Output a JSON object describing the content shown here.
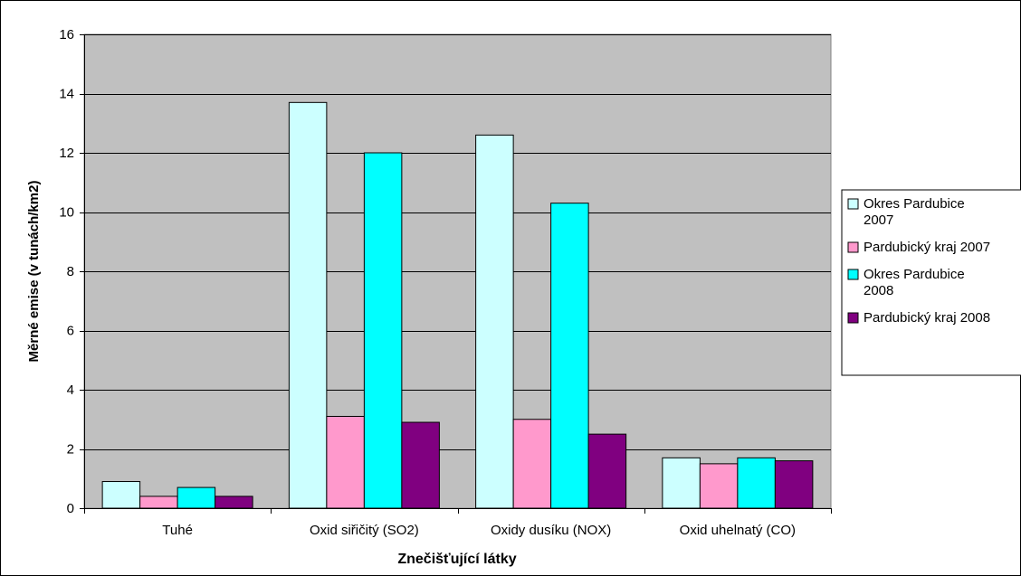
{
  "chart_data": {
    "type": "bar",
    "title": "",
    "xlabel": "Znečišťující látky",
    "ylabel": "Měrné emise (v tunách/km2)",
    "categories": [
      "Tuhé",
      "Oxid siřičitý (SO2)",
      "Oxidy dusíku (NOX)",
      "Oxid uhelnatý (CO)"
    ],
    "series": [
      {
        "name": "Okres Pardubice 2007",
        "legend_lines": [
          "Okres Pardubice",
          "2007"
        ],
        "color": "#ccffff",
        "values": [
          0.9,
          13.7,
          12.6,
          1.7
        ]
      },
      {
        "name": "Pardubický kraj 2007",
        "legend_lines": [
          "Pardubický kraj 2007"
        ],
        "color": "#ff99cc",
        "values": [
          0.4,
          3.1,
          3.0,
          1.5
        ]
      },
      {
        "name": "Okres Pardubice 2008",
        "legend_lines": [
          "Okres Pardubice",
          "2008"
        ],
        "color": "#00ffff",
        "values": [
          0.7,
          12.0,
          10.3,
          1.7
        ]
      },
      {
        "name": "Pardubický kraj 2008",
        "legend_lines": [
          "Pardubický kraj 2008"
        ],
        "color": "#800080",
        "values": [
          0.4,
          2.9,
          2.5,
          1.6
        ]
      }
    ],
    "ylim": [
      0,
      16
    ],
    "yticks": [
      0,
      2,
      4,
      6,
      8,
      10,
      12,
      14,
      16
    ],
    "grid": true,
    "plot_background": "#c0c0c0",
    "legend_position": "right"
  }
}
